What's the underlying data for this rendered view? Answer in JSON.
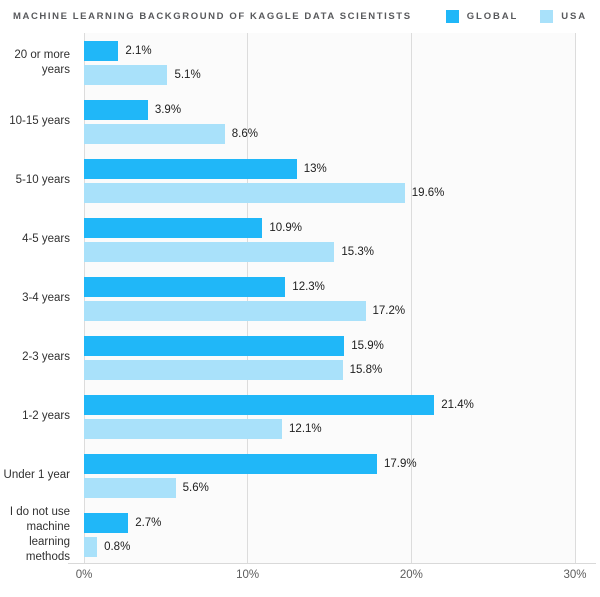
{
  "header": {
    "title": "MACHINE LEARNING BACKGROUND OF KAGGLE DATA SCIENTISTS"
  },
  "chart_data": {
    "type": "bar",
    "orientation": "horizontal",
    "title": "MACHINE LEARNING BACKGROUND OF KAGGLE DATA SCIENTISTS",
    "categories": [
      "20 or more years",
      "10-15 years",
      "5-10 years",
      "4-5 years",
      "3-4 years",
      "2-3 years",
      "1-2 years",
      "Under 1 year",
      "I do not use machine learning methods"
    ],
    "series": [
      {
        "name": "GLOBAL",
        "color": "#20B7F8",
        "values": [
          2.1,
          3.9,
          13,
          10.9,
          12.3,
          15.9,
          21.4,
          17.9,
          2.7
        ],
        "labels": [
          "2.1%",
          "3.9%",
          "13%",
          "10.9%",
          "12.3%",
          "15.9%",
          "21.4%",
          "17.9%",
          "2.7%"
        ]
      },
      {
        "name": "USA",
        "color": "#A9E1FA",
        "values": [
          5.1,
          8.6,
          19.6,
          15.3,
          17.2,
          15.8,
          12.1,
          5.6,
          0.8
        ],
        "labels": [
          "5.1%",
          "8.6%",
          "19.6%",
          "15.3%",
          "17.2%",
          "15.8%",
          "12.1%",
          "5.6%",
          "0.8%"
        ]
      }
    ],
    "x_axis": {
      "min": 0,
      "max": 30,
      "tick_values": [
        0,
        10,
        20,
        30
      ],
      "ticks": [
        "0%",
        "10%",
        "20%",
        "30%"
      ],
      "grid": true
    },
    "legend_position": "top-right",
    "value_labels": "outside-end",
    "grid_color": "#dcdcdc",
    "background": "#ffffff"
  }
}
